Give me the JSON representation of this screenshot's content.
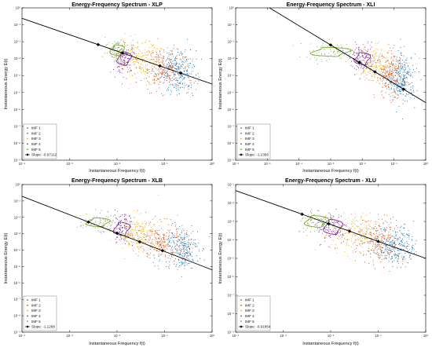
{
  "figure": {
    "panels": [
      {
        "id": "xlp",
        "title": "Energy-Frequency Spectrum - XLP",
        "xlabel": "Instantaneous Frequency f(t)",
        "ylabel": "Instantaneous Energy E(t)",
        "slope_label": "Slope: -0.97112"
      },
      {
        "id": "xli",
        "title": "Energy-Frequency Spectrum - XLI",
        "xlabel": "Instantaneous Frequency f(t)",
        "ylabel": "Instantaneous Energy E(t)",
        "slope_label": "Slope: -1.1356"
      },
      {
        "id": "xlb",
        "title": "Energy-Frequency Spectrum - XLB",
        "xlabel": "Instantaneous Frequency f(t)",
        "ylabel": "Instantaneous Energy E(t)",
        "slope_label": "Slope: -1.1208"
      },
      {
        "id": "xlu",
        "title": "Energy-Frequency Spectrum - XLU",
        "xlabel": "Instantaneous Frequency f(t)",
        "ylabel": "Instantaneous Energy E(t)",
        "slope_label": "Slope: -0.91854"
      }
    ]
  },
  "chart_data": [
    {
      "type": "scatter",
      "title": "Energy-Frequency Spectrum - XLP",
      "xlabel": "Instantaneous Frequency f(t)",
      "ylabel": "Instantaneous Energy E(t)",
      "x_scale": "log",
      "y_scale": "log",
      "xlim": [
        0.0001,
        1
      ],
      "ylim": [
        1e-09,
        1
      ],
      "x_ticks": [
        "10⁻⁴",
        "10⁻³",
        "10⁻²",
        "10⁻¹",
        "10⁰"
      ],
      "y_ticks": [
        "10⁻⁹",
        "10⁻⁸",
        "10⁻⁷",
        "10⁻⁶",
        "10⁻⁵",
        "10⁻⁴",
        "10⁻³",
        "10⁻²",
        "10⁻¹",
        "10⁰"
      ],
      "grid": false,
      "legend_position": "bottom-left",
      "series": [
        {
          "name": "IMF 1",
          "color": "#1f77b4",
          "cx": -0.7,
          "cy": -3.8,
          "sx": 0.18,
          "sy": 0.65
        },
        {
          "name": "IMF 2",
          "color": "#d95319",
          "cx": -1.05,
          "cy": -3.6,
          "sx": 0.22,
          "sy": 0.6
        },
        {
          "name": "IMF 3",
          "color": "#edb120",
          "cx": -1.5,
          "cy": -3.1,
          "sx": 0.22,
          "sy": 0.55
        },
        {
          "name": "IMF 4",
          "color": "#7e2f8e",
          "cx": -1.85,
          "cy": -3.0,
          "sx": 0.12,
          "sy": 0.45
        },
        {
          "name": "IMF 5",
          "color": "#77ac30",
          "cx": -2.0,
          "cy": -2.5,
          "sx": 0.12,
          "sy": 0.35
        }
      ],
      "fit": {
        "name": "Slope: -0.97112",
        "slope": -0.97112,
        "intercept": -4.5,
        "markers_x": [
          0.004,
          0.013,
          0.08,
          0.22
        ]
      }
    },
    {
      "type": "scatter",
      "title": "Energy-Frequency Spectrum - XLI",
      "xlabel": "Instantaneous Frequency f(t)",
      "ylabel": "Instantaneous Energy E(t)",
      "x_scale": "log",
      "y_scale": "log",
      "xlim": [
        1e-06,
        1
      ],
      "ylim": [
        1e-09,
        1
      ],
      "x_ticks": [
        "10⁻⁶",
        "10⁻⁵",
        "10⁻⁴",
        "10⁻³",
        "10⁻²",
        "10⁻¹",
        "10⁰"
      ],
      "y_ticks": [
        "10⁻⁹",
        "10⁻⁸",
        "10⁻⁷",
        "10⁻⁶",
        "10⁻⁵",
        "10⁻⁴",
        "10⁻³",
        "10⁻²",
        "10⁻¹",
        "10⁰"
      ],
      "grid": false,
      "legend_position": "bottom-left",
      "series": [
        {
          "name": "IMF 1",
          "color": "#1f77b4",
          "cx": -0.75,
          "cy": -4.2,
          "sx": 0.22,
          "sy": 0.7
        },
        {
          "name": "IMF 2",
          "color": "#d95319",
          "cx": -1.1,
          "cy": -4.0,
          "sx": 0.25,
          "sy": 0.65
        },
        {
          "name": "IMF 3",
          "color": "#edb120",
          "cx": -1.6,
          "cy": -3.3,
          "sx": 0.3,
          "sy": 0.5
        },
        {
          "name": "IMF 4",
          "color": "#7e2f8e",
          "cx": -2.0,
          "cy": -3.0,
          "sx": 0.2,
          "sy": 0.4
        },
        {
          "name": "IMF 5",
          "color": "#77ac30",
          "cx": -3.0,
          "cy": -2.6,
          "sx": 0.5,
          "sy": 0.3
        }
      ],
      "fit": {
        "name": "Slope: -1.1356",
        "slope": -1.1356,
        "intercept": -5.6,
        "markers_x": [
          0.001,
          0.008,
          0.025,
          0.2
        ]
      }
    },
    {
      "type": "scatter",
      "title": "Energy-Frequency Spectrum - XLB",
      "xlabel": "Instantaneous Frequency f(t)",
      "ylabel": "Instantaneous Energy E(t)",
      "x_scale": "log",
      "y_scale": "log",
      "xlim": [
        0.0001,
        1
      ],
      "ylim": [
        1e-09,
        1
      ],
      "x_ticks": [
        "10⁻⁴",
        "10⁻³",
        "10⁻²",
        "10⁻¹",
        "10⁰"
      ],
      "y_ticks": [
        "10⁻⁹",
        "10⁻⁸",
        "10⁻⁷",
        "10⁻⁶",
        "10⁻⁵",
        "10⁻⁴",
        "10⁻³",
        "10⁻²",
        "10⁻¹",
        "10⁰"
      ],
      "grid": false,
      "legend_position": "bottom-left",
      "series": [
        {
          "name": "IMF 1",
          "color": "#1f77b4",
          "cx": -0.65,
          "cy": -3.9,
          "sx": 0.18,
          "sy": 0.6
        },
        {
          "name": "IMF 2",
          "color": "#d95319",
          "cx": -1.05,
          "cy": -3.5,
          "sx": 0.22,
          "sy": 0.6
        },
        {
          "name": "IMF 3",
          "color": "#edb120",
          "cx": -1.55,
          "cy": -3.0,
          "sx": 0.22,
          "sy": 0.55
        },
        {
          "name": "IMF 4",
          "color": "#7e2f8e",
          "cx": -1.9,
          "cy": -2.7,
          "sx": 0.14,
          "sy": 0.45
        },
        {
          "name": "IMF 5",
          "color": "#77ac30",
          "cx": -2.4,
          "cy": -2.3,
          "sx": 0.2,
          "sy": 0.3
        }
      ],
      "fit": {
        "name": "Slope: -1.1208",
        "slope": -1.1208,
        "intercept": -5.2,
        "markers_x": [
          0.0025,
          0.01,
          0.03,
          0.09
        ]
      }
    },
    {
      "type": "scatter",
      "title": "Energy-Frequency Spectrum - XLU",
      "xlabel": "Instantaneous Frequency f(t)",
      "ylabel": "Instantaneous Energy E(t)",
      "x_scale": "log",
      "y_scale": "log",
      "xlim": [
        0.0001,
        1
      ],
      "ylim": [
        1e-09,
        0.1
      ],
      "x_ticks": [
        "10⁻⁴",
        "10⁻³",
        "10⁻²",
        "10⁻¹",
        "10⁰"
      ],
      "y_ticks": [
        "10⁻⁹",
        "10⁻⁸",
        "10⁻⁷",
        "10⁻⁶",
        "10⁻⁵",
        "10⁻⁴",
        "10⁻³",
        "10⁻²",
        "10⁻¹"
      ],
      "grid": false,
      "legend_position": "bottom-left",
      "series": [
        {
          "name": "IMF 1",
          "color": "#1f77b4",
          "cx": -0.6,
          "cy": -4.3,
          "sx": 0.18,
          "sy": 0.55
        },
        {
          "name": "IMF 2",
          "color": "#d95319",
          "cx": -1.0,
          "cy": -4.1,
          "sx": 0.22,
          "sy": 0.6
        },
        {
          "name": "IMF 3",
          "color": "#edb120",
          "cx": -1.5,
          "cy": -3.7,
          "sx": 0.25,
          "sy": 0.55
        },
        {
          "name": "IMF 4",
          "color": "#7e2f8e",
          "cx": -1.95,
          "cy": -3.3,
          "sx": 0.16,
          "sy": 0.45
        },
        {
          "name": "IMF 5",
          "color": "#77ac30",
          "cx": -2.3,
          "cy": -3.0,
          "sx": 0.2,
          "sy": 0.35
        }
      ],
      "fit": {
        "name": "Slope: -0.91854",
        "slope": -0.91854,
        "intercept": -5.0,
        "markers_x": [
          0.0025,
          0.009,
          0.025,
          0.1
        ]
      }
    }
  ]
}
